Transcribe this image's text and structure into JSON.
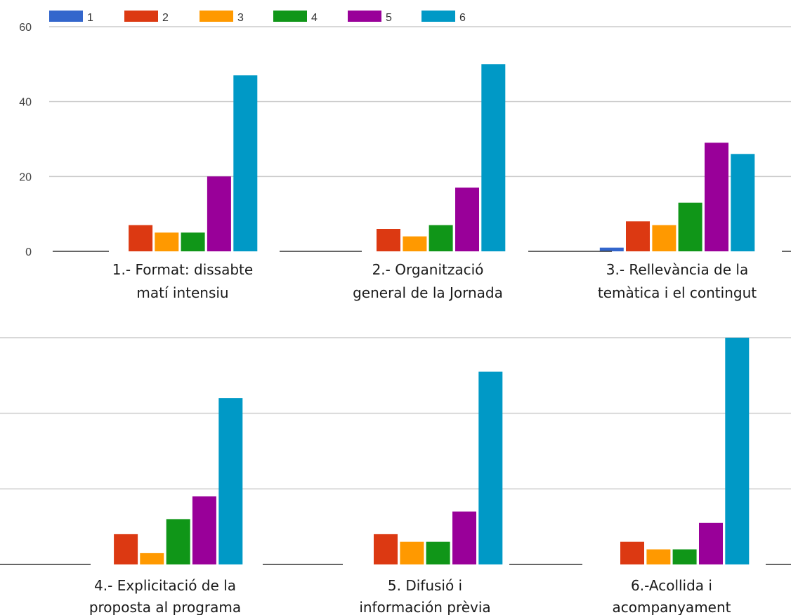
{
  "colors": {
    "s1": "#3366cc",
    "s2": "#dc3912",
    "s3": "#ff9900",
    "s4": "#109618",
    "s5": "#990099",
    "s6": "#0099c6",
    "grid": "#cccccc",
    "baseline": "#333333"
  },
  "legend": {
    "position": "top-left",
    "items": [
      "1",
      "2",
      "3",
      "4",
      "5",
      "6"
    ]
  },
  "chart_data": [
    {
      "type": "bar",
      "panel": "top",
      "categories": [
        "1.- Format: dissabte matí intensiu",
        "2.- Organització general de la Jornada",
        "3.- Rellevància de la temàtica i el contingut"
      ],
      "category_label_lines": [
        [
          "1.- Format: dissabte",
          "matí intensiu"
        ],
        [
          "2.- Organització",
          "general de la Jornada"
        ],
        [
          "3.- Rellevància de la",
          "temàtica i el contingut"
        ]
      ],
      "series": [
        {
          "name": "1",
          "values": [
            0,
            0,
            1
          ]
        },
        {
          "name": "2",
          "values": [
            7,
            6,
            8
          ]
        },
        {
          "name": "3",
          "values": [
            5,
            4,
            7
          ]
        },
        {
          "name": "4",
          "values": [
            5,
            7,
            13
          ]
        },
        {
          "name": "5",
          "values": [
            20,
            17,
            29
          ]
        },
        {
          "name": "6",
          "values": [
            47,
            50,
            26
          ]
        }
      ],
      "ylim": [
        0,
        60
      ],
      "yticks": [
        "0",
        "20",
        "40",
        "60"
      ],
      "grid": true
    },
    {
      "type": "bar",
      "panel": "bottom",
      "categories": [
        "4.- Explicitació de la proposta al programa",
        "5. Difusió i información prèvia",
        "6.-Acollida i acompanyament"
      ],
      "category_label_lines": [
        [
          "4.- Explicitació de la",
          "proposta al programa"
        ],
        [
          "5. Difusió i",
          "información prèvia"
        ],
        [
          "6.-Acollida i",
          "acompanyament"
        ]
      ],
      "series": [
        {
          "name": "1",
          "values": [
            0,
            0,
            0
          ]
        },
        {
          "name": "2",
          "values": [
            8,
            8,
            6
          ]
        },
        {
          "name": "3",
          "values": [
            3,
            6,
            4
          ]
        },
        {
          "name": "4",
          "values": [
            12,
            6,
            4
          ]
        },
        {
          "name": "5",
          "values": [
            18,
            14,
            11
          ]
        },
        {
          "name": "6",
          "values": [
            44,
            51,
            60
          ]
        }
      ],
      "ylim": [
        0,
        60
      ],
      "yticks": [],
      "grid": true
    }
  ]
}
